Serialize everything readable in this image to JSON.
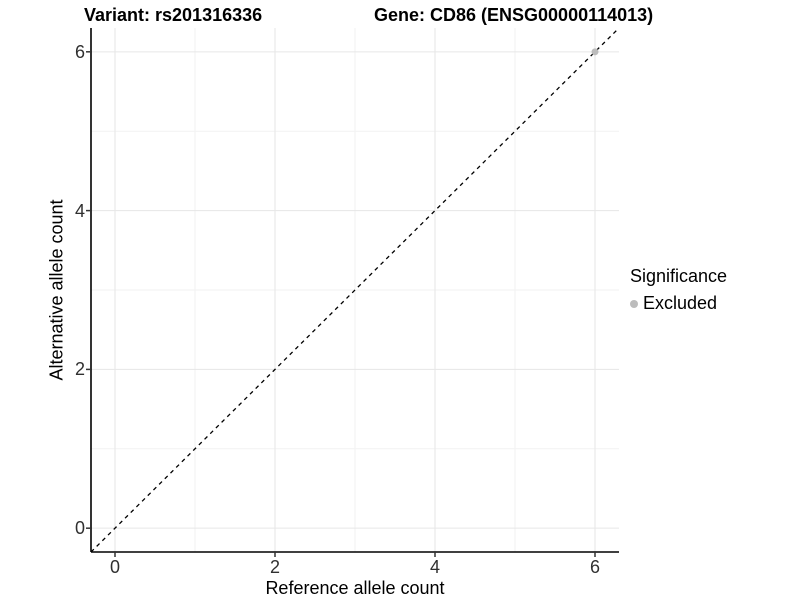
{
  "chart_data": {
    "type": "scatter",
    "titles": {
      "left": "Variant: rs201316336",
      "right": "Gene: CD86 (ENSG00000114013)"
    },
    "xlabel": "Reference allele count",
    "ylabel": "Alternative allele count",
    "xlim": [
      -0.3,
      6.3
    ],
    "ylim": [
      -0.3,
      6.3
    ],
    "x_ticks": [
      0,
      2,
      4,
      6
    ],
    "y_ticks": [
      0,
      2,
      4,
      6
    ],
    "x_minor_gridlines": [
      1,
      3,
      5
    ],
    "y_minor_gridlines": [
      1,
      3,
      5
    ],
    "grid": true,
    "reference_line": {
      "type": "identity",
      "style": "dashed",
      "color": "#000000"
    },
    "series": [
      {
        "name": "Excluded",
        "color": "#bcbcbc",
        "points": [
          [
            6,
            6
          ]
        ]
      }
    ],
    "legend": {
      "title": "Significance",
      "position": "right",
      "items": [
        {
          "label": "Excluded",
          "color": "#bcbcbc"
        }
      ]
    },
    "colors": {
      "background": "#ffffff",
      "panel_background": "#ffffff",
      "major_grid": "#e6e6e6",
      "minor_grid": "#f2f2f2",
      "axis_line": "#000000",
      "tick_mark": "#333333",
      "point": "#bcbcbc"
    }
  }
}
